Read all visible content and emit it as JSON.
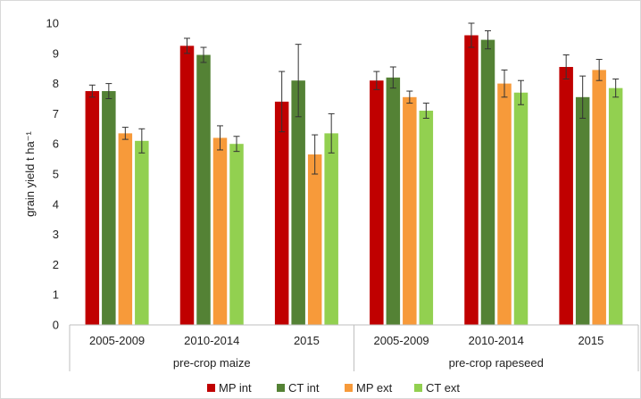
{
  "chart_data": {
    "type": "bar",
    "title": "",
    "ylabel": "grain yield t ha⁻¹",
    "ylim": [
      0,
      10
    ],
    "yticks": [
      0,
      1,
      2,
      3,
      4,
      5,
      6,
      7,
      8,
      9,
      10
    ],
    "grid": false,
    "legend_position": "bottom",
    "groups": [
      {
        "label": "pre-crop maize",
        "categories": [
          "2005-2009",
          "2010-2014",
          "2015"
        ]
      },
      {
        "label": "pre-crop rapeseed",
        "categories": [
          "2005-2009",
          "2010-2014",
          "2015"
        ]
      }
    ],
    "categories": [
      "2005-2009",
      "2010-2014",
      "2015",
      "2005-2009",
      "2010-2014",
      "2015"
    ],
    "series": [
      {
        "name": "MP int",
        "color": "#c00000",
        "values": [
          7.75,
          9.25,
          7.4,
          8.1,
          9.6,
          8.55
        ],
        "errors": [
          0.2,
          0.25,
          1.0,
          0.3,
          0.4,
          0.4
        ]
      },
      {
        "name": "CT int",
        "color": "#548235",
        "values": [
          7.75,
          8.95,
          8.1,
          8.2,
          9.45,
          7.55
        ],
        "errors": [
          0.25,
          0.25,
          1.2,
          0.35,
          0.3,
          0.7
        ]
      },
      {
        "name": "MP ext",
        "color": "#f79a3a",
        "values": [
          6.35,
          6.2,
          5.65,
          7.55,
          8.0,
          8.45
        ],
        "errors": [
          0.2,
          0.4,
          0.65,
          0.2,
          0.45,
          0.35
        ]
      },
      {
        "name": "CT ext",
        "color": "#92d050",
        "values": [
          6.1,
          6.0,
          6.35,
          7.1,
          7.7,
          7.85
        ],
        "errors": [
          0.4,
          0.25,
          0.65,
          0.25,
          0.4,
          0.3
        ]
      }
    ]
  }
}
